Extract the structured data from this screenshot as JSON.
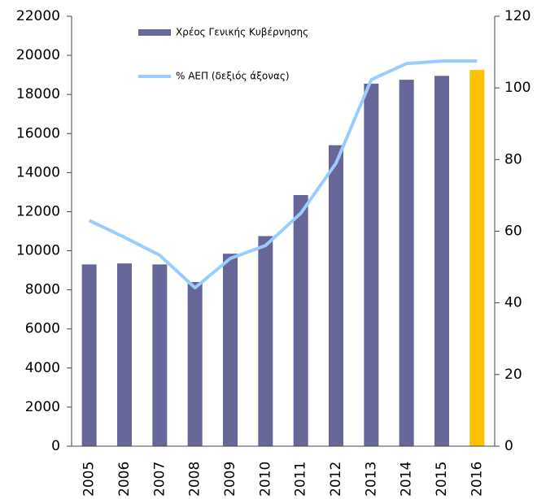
{
  "chart_data": {
    "type": "bar_line",
    "categories": [
      "2005",
      "2006",
      "2007",
      "2008",
      "2009",
      "2010",
      "2011",
      "2012",
      "2013",
      "2014",
      "2015",
      "2016"
    ],
    "series": [
      {
        "name": "Χρέος Γενικής Κυβέρνησης",
        "type": "bar",
        "color": "#666699",
        "colors": [
          "#666699",
          "#666699",
          "#666699",
          "#666699",
          "#666699",
          "#666699",
          "#666699",
          "#666699",
          "#666699",
          "#666699",
          "#666699",
          "#ffc000"
        ],
        "values": [
          9300,
          9350,
          9300,
          8400,
          9850,
          10750,
          12850,
          15400,
          18550,
          18750,
          18950,
          19250
        ]
      },
      {
        "name": "% ΑΕΠ (δεξιός άξονας)",
        "type": "line",
        "axis": "y2",
        "color": "#99ccff",
        "values": [
          63,
          58.3,
          53.3,
          44.2,
          52.4,
          56,
          65,
          79,
          102.3,
          106.8,
          107.5,
          107.5
        ]
      }
    ],
    "ylim": [
      0,
      22000
    ],
    "yticks": [
      0,
      2000,
      4000,
      6000,
      8000,
      10000,
      12000,
      14000,
      16000,
      18000,
      20000,
      22000
    ],
    "y2lim": [
      0,
      120
    ],
    "y2ticks": [
      0,
      20,
      40,
      60,
      80,
      100,
      120
    ],
    "legend": "upper left",
    "grid": false
  }
}
